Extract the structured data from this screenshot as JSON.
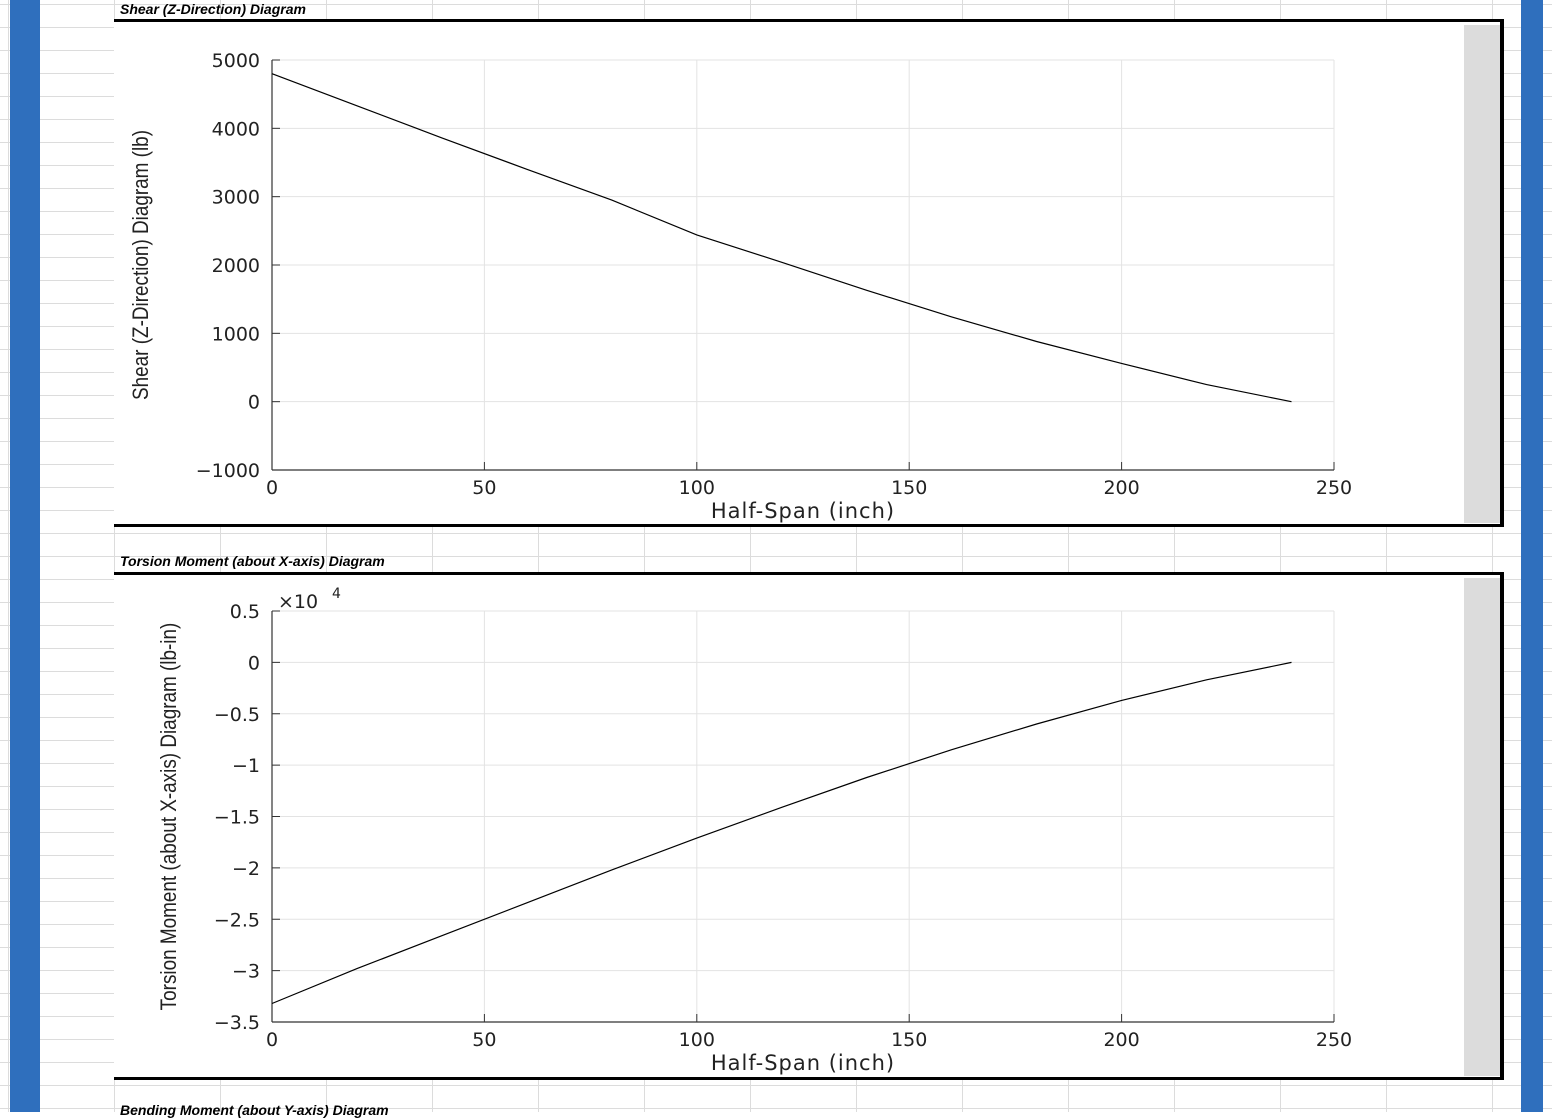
{
  "sections": [
    {
      "title": "Shear (Z-Direction) Diagram"
    },
    {
      "title": "Torsion Moment (about X-axis) Diagram"
    },
    {
      "title": "Bending Moment (about Y-axis) Diagram"
    }
  ],
  "colors": {
    "frame_blue": "#2f6fbd",
    "line": "#000000",
    "grid": "#e3e3e3",
    "side_panel": "#dcdcdc"
  },
  "chart_data": [
    {
      "type": "line",
      "title": "",
      "xlabel": "Half-Span (inch)",
      "ylabel": "Shear (Z-Direction) Diagram (lb)",
      "xlim": [
        0,
        250
      ],
      "ylim": [
        -1000,
        5000
      ],
      "x_ticks": [
        0,
        50,
        100,
        150,
        200,
        250
      ],
      "y_ticks": [
        -1000,
        0,
        1000,
        2000,
        3000,
        4000,
        5000
      ],
      "x_tick_labels": [
        "0",
        "50",
        "100",
        "150",
        "200",
        "250"
      ],
      "y_tick_labels": [
        "-1000",
        "0",
        "1000",
        "2000",
        "3000",
        "4000",
        "5000"
      ],
      "exponent_label": "",
      "grid": true,
      "series": [
        {
          "x": [
            0,
            20,
            40,
            60,
            80,
            100,
            120,
            140,
            160,
            180,
            200,
            220,
            240
          ],
          "y": [
            4800,
            4330,
            3860,
            3400,
            2950,
            2440,
            2040,
            1630,
            1240,
            880,
            560,
            250,
            0
          ]
        }
      ]
    },
    {
      "type": "line",
      "title": "",
      "xlabel": "Half-Span (inch)",
      "ylabel": "Torsion Moment (about X-axis) Diagram (lb-in)",
      "xlim": [
        0,
        250
      ],
      "ylim": [
        -3.5,
        0.5
      ],
      "x_ticks": [
        0,
        50,
        100,
        150,
        200,
        250
      ],
      "y_ticks": [
        -3.5,
        -3,
        -2.5,
        -2,
        -1.5,
        -1,
        -0.5,
        0,
        0.5
      ],
      "x_tick_labels": [
        "0",
        "50",
        "100",
        "150",
        "200",
        "250"
      ],
      "y_tick_labels": [
        "-3.5",
        "-3",
        "-2.5",
        "-2",
        "-1.5",
        "-1",
        "-0.5",
        "0",
        "0.5"
      ],
      "exponent_label": "×10",
      "exponent_power": "4",
      "grid": true,
      "series": [
        {
          "x": [
            0,
            20,
            40,
            60,
            80,
            100,
            120,
            140,
            160,
            180,
            200,
            220,
            240
          ],
          "y": [
            -3.32,
            -2.98,
            -2.66,
            -2.34,
            -2.02,
            -1.71,
            -1.41,
            -1.12,
            -0.85,
            -0.6,
            -0.37,
            -0.17,
            0
          ]
        }
      ]
    }
  ]
}
